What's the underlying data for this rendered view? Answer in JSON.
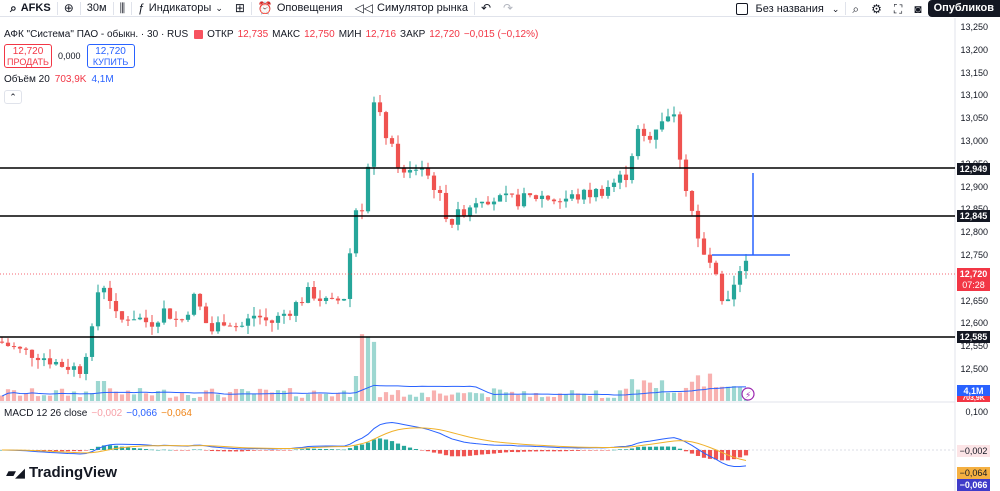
{
  "toolbar": {
    "symbol": "AFKS",
    "interval": "30м",
    "indicators_label": "Индикаторы",
    "alerts_label": "Оповещения",
    "replay_label": "Симулятор рынка",
    "layout_name": "Без названия",
    "publish_label": "Опубликов"
  },
  "legend": {
    "title": "АФК \"Система\" ПАО - обыкн. · 30 · RUS",
    "open_label": "ОТКР",
    "open_value": "12,735",
    "high_label": "МАКС",
    "high_value": "12,750",
    "low_label": "МИН",
    "low_value": "12,716",
    "close_label": "ЗАКР",
    "close_value": "12,720",
    "change_value": "−0,015 (−0,12%)"
  },
  "trade": {
    "sell_price": "12,720",
    "sell_label": "ПРОДАТЬ",
    "spread": "0,000",
    "buy_price": "12,720",
    "buy_label": "КУПИТЬ"
  },
  "volume": {
    "label": "Объём 20",
    "value_red": "703,9K",
    "value_blue": "4,1M"
  },
  "macd": {
    "label": "MACD 12 26 close",
    "hist": "−0,002",
    "macd": "−0,066",
    "signal": "−0,064"
  },
  "price_axis": [
    "13,250",
    "13,200",
    "13,150",
    "13,100",
    "13,050",
    "13,000",
    "12,950",
    "12,900",
    "12,850",
    "12,800",
    "12,750",
    "12,700",
    "12,650",
    "12,600",
    "12,550",
    "12,500"
  ],
  "axis_tags": {
    "level_high": "12,949",
    "level_mid": "12,845",
    "level_low": "12,585",
    "last_price": "12,720",
    "countdown": "07:28",
    "vol_ma": "4,1M",
    "vol_now": "703,9K",
    "macd_top": "0,100",
    "macd_hist": "−0,002",
    "macd_signal": "−0,064",
    "macd_line": "−0,066"
  },
  "colors": {
    "up": "#26a69a",
    "down": "#ef5350",
    "accent": "#2962ff",
    "signal": "#f0861a",
    "level_line": "#000000"
  },
  "branding": "TradingView"
}
